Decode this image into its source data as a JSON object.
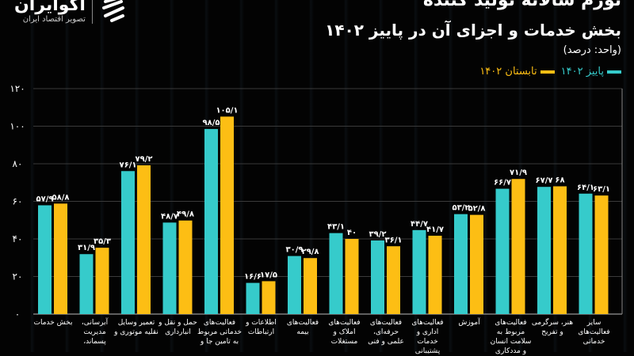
{
  "header": {
    "title_line1": "تورم سالانه تولید کننده",
    "title_line2": "بخش خدمات و اجزای آن در پاییز ۱۴۰۲",
    "unit": "(واحد: درصد)"
  },
  "logo": {
    "name": "اکوایران",
    "tagline": "تصویر اقتصاد ایران"
  },
  "colors": {
    "autumn": "#36CBCB",
    "summer": "#FDBE14",
    "background": "#030303",
    "grid": "#3a3a3a"
  },
  "chart_data": {
    "type": "bar",
    "title": "بخش خدمات و اجزای آن در پاییز ۱۴۰۲",
    "ylabel": "(واحد: درصد)",
    "ylim": [
      0,
      120
    ],
    "yticks": [
      0,
      20,
      40,
      60,
      80,
      100,
      120
    ],
    "ytick_labels": [
      "۰",
      "۲۰",
      "۴۰",
      "۶۰",
      "۸۰",
      "۱۰۰",
      "۱۲۰"
    ],
    "grid": true,
    "legend_position": "top-right",
    "categories": [
      "بخش خدمات",
      "آبرسانی، مدیریت پسماند،",
      "تعمیر وسایل نقلیه موتوری و",
      "حمل و نقل و انبارداری",
      "فعالیت‌های خدماتی مربوط به تامین جا و",
      "اطلاعات و ارتباطات",
      "فعالیت‌های بیمه",
      "فعالیت‌های املاک و مستغلات",
      "فعالیت‌های حرفه‌ای، علمی و فنی",
      "فعالیت‌های اداری و خدمات پشتیبانی",
      "آموزش",
      "فعالیت‌های مربوط به سلامت انسان و مددکاری",
      "هنر، سرگرمی و تفریح",
      "سایر فعالیت‌های خدماتی"
    ],
    "series": [
      {
        "name": "پاییز ۱۴۰۲",
        "color": "#36CBCB",
        "values": [
          57.9,
          31.9,
          76.1,
          48.7,
          98.5,
          16.6,
          30.9,
          43.1,
          39.2,
          44.7,
          53.2,
          66.7,
          67.7,
          64.1
        ],
        "labels": [
          "۵۷/۹",
          "۳۱/۹",
          "۷۶/۱",
          "۴۸/۷",
          "۹۸/۵",
          "۱۶/۶",
          "۳۰/۹",
          "۴۳/۱",
          "۳۹/۲",
          "۴۴/۷",
          "۵۳/۲",
          "۶۶/۷",
          "۶۷/۷",
          "۶۴/۱"
        ]
      },
      {
        "name": "تابستان ۱۴۰۲",
        "color": "#FDBE14",
        "values": [
          58.8,
          35.3,
          79.2,
          49.8,
          105.1,
          17.5,
          29.8,
          40,
          36.1,
          41.7,
          52.8,
          71.9,
          68,
          63.1
        ],
        "labels": [
          "۵۸/۸",
          "۳۵/۳",
          "۷۹/۲",
          "۴۹/۸",
          "۱۰۵/۱",
          "۱۷/۵",
          "۲۹/۸",
          "۴۰",
          "۳۶/۱",
          "۴۱/۷",
          "۵۲/۸",
          "۷۱/۹",
          "۶۸",
          "۶۳/۱"
        ]
      }
    ]
  }
}
